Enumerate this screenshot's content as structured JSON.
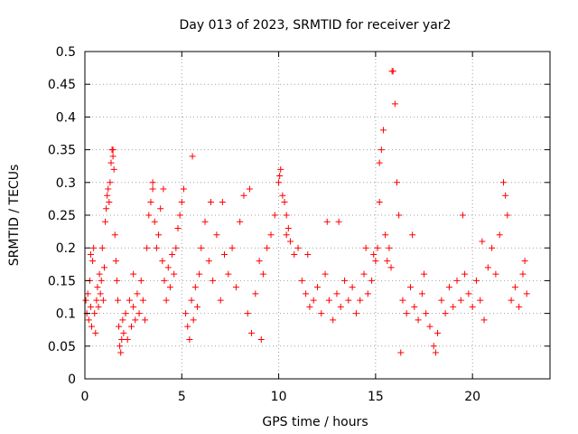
{
  "chart_data": {
    "type": "scatter",
    "title": "Day 013 of 2023, SRMTID for receiver yar2",
    "xlabel": "GPS time / hours",
    "ylabel": "SRMTID / TECUs",
    "xlim": [
      0,
      24
    ],
    "ylim": [
      0,
      0.5
    ],
    "xticks": [
      0,
      5,
      10,
      15,
      20
    ],
    "xtick_labels": [
      "0",
      "5",
      "10",
      "15",
      "20"
    ],
    "yticks": [
      0,
      0.05,
      0.1,
      0.15,
      0.2,
      0.25,
      0.3,
      0.35,
      0.4,
      0.45,
      0.5
    ],
    "ytick_labels": [
      "0",
      "0.05",
      "0.1",
      "0.15",
      "0.2",
      "0.25",
      "0.3",
      "0.35",
      "0.4",
      "0.45",
      "0.5"
    ],
    "grid": true,
    "marker": "+",
    "color": "#ff0000",
    "series": [
      {
        "name": "SRMTID",
        "points": [
          [
            0.05,
            0.12
          ],
          [
            0.1,
            0.1
          ],
          [
            0.15,
            0.13
          ],
          [
            0.2,
            0.09
          ],
          [
            0.25,
            0.15
          ],
          [
            0.3,
            0.11
          ],
          [
            0.35,
            0.08
          ],
          [
            0.4,
            0.18
          ],
          [
            0.45,
            0.2
          ],
          [
            0.5,
            0.1
          ],
          [
            0.55,
            0.07
          ],
          [
            0.6,
            0.12
          ],
          [
            0.65,
            0.14
          ],
          [
            0.7,
            0.11
          ],
          [
            0.75,
            0.16
          ],
          [
            0.8,
            0.13
          ],
          [
            0.85,
            0.15
          ],
          [
            0.9,
            0.2
          ],
          [
            0.95,
            0.12
          ],
          [
            1.0,
            0.17
          ],
          [
            1.05,
            0.24
          ],
          [
            1.1,
            0.26
          ],
          [
            1.15,
            0.28
          ],
          [
            1.2,
            0.29
          ],
          [
            1.25,
            0.27
          ],
          [
            1.3,
            0.3
          ],
          [
            1.35,
            0.33
          ],
          [
            1.4,
            0.35
          ],
          [
            1.45,
            0.34
          ],
          [
            1.5,
            0.32
          ],
          [
            1.55,
            0.22
          ],
          [
            1.6,
            0.18
          ],
          [
            1.65,
            0.15
          ],
          [
            1.7,
            0.12
          ],
          [
            1.75,
            0.08
          ],
          [
            1.8,
            0.05
          ],
          [
            1.85,
            0.04
          ],
          [
            1.9,
            0.06
          ],
          [
            1.95,
            0.09
          ],
          [
            2.0,
            0.07
          ],
          [
            2.1,
            0.1
          ],
          [
            2.2,
            0.06
          ],
          [
            2.3,
            0.12
          ],
          [
            2.4,
            0.08
          ],
          [
            2.5,
            0.11
          ],
          [
            2.6,
            0.09
          ],
          [
            2.7,
            0.13
          ],
          [
            2.8,
            0.1
          ],
          [
            2.9,
            0.15
          ],
          [
            3.0,
            0.12
          ],
          [
            3.1,
            0.09
          ],
          [
            3.2,
            0.2
          ],
          [
            3.3,
            0.25
          ],
          [
            3.4,
            0.27
          ],
          [
            3.5,
            0.29
          ],
          [
            3.6,
            0.24
          ],
          [
            3.7,
            0.2
          ],
          [
            3.8,
            0.22
          ],
          [
            3.9,
            0.26
          ],
          [
            4.0,
            0.18
          ],
          [
            4.1,
            0.15
          ],
          [
            4.2,
            0.12
          ],
          [
            4.3,
            0.17
          ],
          [
            4.4,
            0.14
          ],
          [
            4.5,
            0.19
          ],
          [
            4.6,
            0.16
          ],
          [
            4.7,
            0.2
          ],
          [
            4.8,
            0.23
          ],
          [
            4.9,
            0.25
          ],
          [
            5.0,
            0.27
          ],
          [
            5.1,
            0.29
          ],
          [
            5.2,
            0.1
          ],
          [
            5.3,
            0.08
          ],
          [
            5.4,
            0.06
          ],
          [
            5.5,
            0.12
          ],
          [
            5.6,
            0.09
          ],
          [
            5.7,
            0.14
          ],
          [
            5.8,
            0.11
          ],
          [
            5.9,
            0.16
          ],
          [
            6.0,
            0.2
          ],
          [
            6.2,
            0.24
          ],
          [
            6.4,
            0.18
          ],
          [
            6.6,
            0.15
          ],
          [
            6.8,
            0.22
          ],
          [
            7.0,
            0.12
          ],
          [
            7.2,
            0.19
          ],
          [
            7.4,
            0.16
          ],
          [
            7.6,
            0.2
          ],
          [
            7.8,
            0.14
          ],
          [
            8.0,
            0.24
          ],
          [
            8.2,
            0.28
          ],
          [
            8.4,
            0.1
          ],
          [
            8.6,
            0.07
          ],
          [
            8.8,
            0.13
          ],
          [
            9.0,
            0.18
          ],
          [
            9.2,
            0.16
          ],
          [
            9.4,
            0.2
          ],
          [
            9.6,
            0.22
          ],
          [
            9.8,
            0.25
          ],
          [
            10.0,
            0.3
          ],
          [
            10.1,
            0.32
          ],
          [
            10.2,
            0.28
          ],
          [
            10.3,
            0.27
          ],
          [
            10.4,
            0.25
          ],
          [
            10.5,
            0.23
          ],
          [
            10.6,
            0.21
          ],
          [
            10.8,
            0.19
          ],
          [
            11.0,
            0.2
          ],
          [
            11.2,
            0.15
          ],
          [
            11.4,
            0.13
          ],
          [
            11.6,
            0.11
          ],
          [
            11.8,
            0.12
          ],
          [
            12.0,
            0.14
          ],
          [
            12.2,
            0.1
          ],
          [
            12.4,
            0.16
          ],
          [
            12.6,
            0.12
          ],
          [
            12.8,
            0.09
          ],
          [
            13.0,
            0.13
          ],
          [
            13.2,
            0.11
          ],
          [
            13.4,
            0.15
          ],
          [
            13.6,
            0.12
          ],
          [
            13.8,
            0.14
          ],
          [
            14.0,
            0.1
          ],
          [
            14.2,
            0.12
          ],
          [
            14.4,
            0.16
          ],
          [
            14.6,
            0.13
          ],
          [
            14.8,
            0.15
          ],
          [
            15.0,
            0.18
          ],
          [
            15.1,
            0.2
          ],
          [
            15.2,
            0.27
          ],
          [
            15.3,
            0.35
          ],
          [
            15.4,
            0.38
          ],
          [
            15.5,
            0.22
          ],
          [
            15.6,
            0.18
          ],
          [
            15.7,
            0.2
          ],
          [
            15.8,
            0.17
          ],
          [
            15.9,
            0.47
          ],
          [
            16.0,
            0.42
          ],
          [
            16.1,
            0.3
          ],
          [
            16.2,
            0.25
          ],
          [
            16.4,
            0.12
          ],
          [
            16.6,
            0.1
          ],
          [
            16.8,
            0.14
          ],
          [
            17.0,
            0.11
          ],
          [
            17.2,
            0.09
          ],
          [
            17.4,
            0.13
          ],
          [
            17.6,
            0.1
          ],
          [
            17.8,
            0.08
          ],
          [
            18.0,
            0.05
          ],
          [
            18.2,
            0.07
          ],
          [
            18.4,
            0.12
          ],
          [
            18.6,
            0.1
          ],
          [
            18.8,
            0.14
          ],
          [
            19.0,
            0.11
          ],
          [
            19.2,
            0.15
          ],
          [
            19.4,
            0.12
          ],
          [
            19.6,
            0.16
          ],
          [
            19.8,
            0.13
          ],
          [
            20.0,
            0.11
          ],
          [
            20.2,
            0.15
          ],
          [
            20.4,
            0.12
          ],
          [
            20.6,
            0.09
          ],
          [
            20.8,
            0.17
          ],
          [
            21.0,
            0.2
          ],
          [
            21.2,
            0.16
          ],
          [
            21.4,
            0.22
          ],
          [
            21.6,
            0.3
          ],
          [
            21.8,
            0.25
          ],
          [
            22.0,
            0.12
          ],
          [
            22.2,
            0.14
          ],
          [
            22.4,
            0.11
          ],
          [
            22.6,
            0.16
          ],
          [
            22.8,
            0.13
          ],
          [
            1.45,
            0.35
          ],
          [
            15.85,
            0.47
          ],
          [
            10.05,
            0.31
          ],
          [
            4.05,
            0.29
          ],
          [
            5.55,
            0.34
          ],
          [
            18.1,
            0.04
          ],
          [
            16.3,
            0.04
          ],
          [
            7.1,
            0.27
          ],
          [
            8.5,
            0.29
          ],
          [
            12.5,
            0.24
          ],
          [
            14.5,
            0.2
          ],
          [
            19.5,
            0.25
          ],
          [
            21.7,
            0.28
          ],
          [
            22.7,
            0.18
          ],
          [
            0.3,
            0.19
          ],
          [
            2.5,
            0.16
          ],
          [
            6.5,
            0.27
          ],
          [
            9.1,
            0.06
          ],
          [
            13.1,
            0.24
          ],
          [
            16.9,
            0.22
          ],
          [
            20.5,
            0.21
          ],
          [
            11.5,
            0.19
          ],
          [
            17.5,
            0.16
          ],
          [
            3.5,
            0.3
          ],
          [
            10.4,
            0.22
          ],
          [
            14.9,
            0.19
          ],
          [
            15.2,
            0.33
          ]
        ]
      }
    ]
  }
}
